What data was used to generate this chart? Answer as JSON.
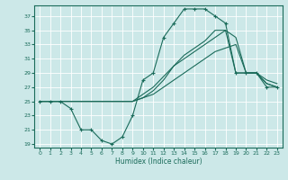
{
  "xlabel": "Humidex (Indice chaleur)",
  "xlim": [
    -0.5,
    23.5
  ],
  "ylim": [
    18.5,
    38.5
  ],
  "yticks": [
    19,
    21,
    23,
    25,
    27,
    29,
    31,
    33,
    35,
    37
  ],
  "xticks": [
    0,
    1,
    2,
    3,
    4,
    5,
    6,
    7,
    8,
    9,
    10,
    11,
    12,
    13,
    14,
    15,
    16,
    17,
    18,
    19,
    20,
    21,
    22,
    23
  ],
  "bg_color": "#cce8e8",
  "line_color": "#1a6b5a",
  "grid_color": "#ffffff",
  "lines": [
    {
      "x": [
        0,
        1,
        2,
        3,
        4,
        5,
        6,
        7,
        8,
        9,
        10,
        11,
        12,
        13,
        14,
        15,
        16,
        17,
        18,
        19,
        20,
        21,
        22,
        23
      ],
      "y": [
        25,
        25,
        25,
        24,
        21,
        21,
        19.5,
        19,
        20,
        23,
        28,
        29,
        34,
        36,
        38,
        38,
        38,
        37,
        36,
        29,
        29,
        29,
        27,
        27
      ],
      "marker": "+"
    },
    {
      "x": [
        0,
        1,
        2,
        3,
        4,
        5,
        6,
        7,
        8,
        9,
        10,
        11,
        12,
        13,
        14,
        15,
        16,
        17,
        18,
        19,
        20,
        21,
        22,
        23
      ],
      "y": [
        25,
        25,
        25,
        25,
        25,
        25,
        25,
        25,
        25,
        25,
        25.5,
        26,
        27,
        28,
        29,
        30,
        31,
        32,
        32.5,
        33,
        29,
        29,
        27.5,
        27
      ],
      "marker": null
    },
    {
      "x": [
        0,
        1,
        2,
        3,
        4,
        5,
        6,
        7,
        8,
        9,
        10,
        11,
        12,
        13,
        14,
        15,
        16,
        17,
        18,
        19,
        20,
        21,
        22,
        23
      ],
      "y": [
        25,
        25,
        25,
        25,
        25,
        25,
        25,
        25,
        25,
        25,
        25.5,
        26.5,
        28,
        30,
        31,
        32,
        33,
        34,
        35,
        29,
        29,
        29,
        27.5,
        27
      ],
      "marker": null
    },
    {
      "x": [
        0,
        1,
        2,
        3,
        4,
        5,
        6,
        7,
        8,
        9,
        10,
        11,
        12,
        13,
        14,
        15,
        16,
        17,
        18,
        19,
        20,
        21,
        22,
        23
      ],
      "y": [
        25,
        25,
        25,
        25,
        25,
        25,
        25,
        25,
        25,
        25,
        26,
        27,
        28.5,
        30,
        31.5,
        32.5,
        33.5,
        35,
        35,
        34,
        29,
        29,
        28,
        27.5
      ],
      "marker": null
    }
  ]
}
